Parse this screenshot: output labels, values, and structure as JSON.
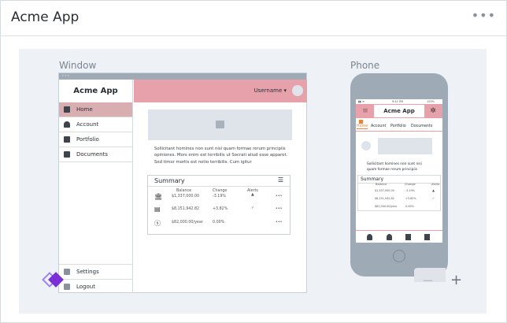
{
  "header": {
    "title": "Acme App",
    "menu": "•••"
  },
  "labels": {
    "window": "Window",
    "phone": "Phone"
  },
  "window": {
    "dots": "•••",
    "brand": "Acme App",
    "username": "Username ▾",
    "nav": [
      {
        "label": "Home",
        "icon": "home-icon"
      },
      {
        "label": "Account",
        "icon": "user-icon"
      },
      {
        "label": "Portfolio",
        "icon": "briefcase-icon"
      },
      {
        "label": "Documents",
        "icon": "document-icon"
      }
    ],
    "bottom_nav": [
      {
        "label": "Settings",
        "icon": "gear-icon"
      },
      {
        "label": "Logout",
        "icon": "logout-icon"
      }
    ],
    "body_text": "Sollicitant homines non sunt nisi quam formae rerum principiis opiniones. Mors enim est terribilis ut Socrati aliud esse apparet. Sed timor mortis est notio terribilis. Cum igitur",
    "summary": {
      "title": "Summary",
      "columns": [
        "Balance",
        "Change",
        "Alerts"
      ],
      "rows": [
        {
          "icon": "bank-icon",
          "balance": "$1,337,000.00",
          "change": "-3.19%",
          "alert": "▲",
          "menu": "•••"
        },
        {
          "icon": "portfolio-icon",
          "balance": "$8,151,942.82",
          "change": "+3.82%",
          "alert": "✓",
          "menu": "•••"
        },
        {
          "icon": "dollar-icon",
          "balance": "$82,000.00/year",
          "change": "0.00%",
          "alert": "",
          "menu": "•••"
        }
      ]
    }
  },
  "phone": {
    "brand": "Acme App",
    "status_time": "9:41 PM",
    "battery": "100%",
    "tabs": [
      "Home",
      "Account",
      "Portfolio",
      "Documents"
    ],
    "body_text": "Sollicitant homines non sunt nisi quam formae rerum principiis",
    "summary": {
      "title": "Summary",
      "columns": [
        "Balance",
        "Change",
        "Alerts"
      ],
      "rows": [
        {
          "balance": "$1,337,000.00",
          "change": "-3.19%",
          "alert": "▲"
        },
        {
          "balance": "$8,151,942.82",
          "change": "+3.82%",
          "alert": "✓"
        },
        {
          "balance": "$82,000.00/year",
          "change": "0.00%",
          "alert": ""
        }
      ]
    }
  },
  "zoom": {
    "out": "−",
    "in": "+"
  },
  "colors": {
    "accent": "#e7a1aa",
    "active_nav": "#d9aeb1",
    "device": "#9eaab5",
    "logo": "#7b2fd6"
  }
}
